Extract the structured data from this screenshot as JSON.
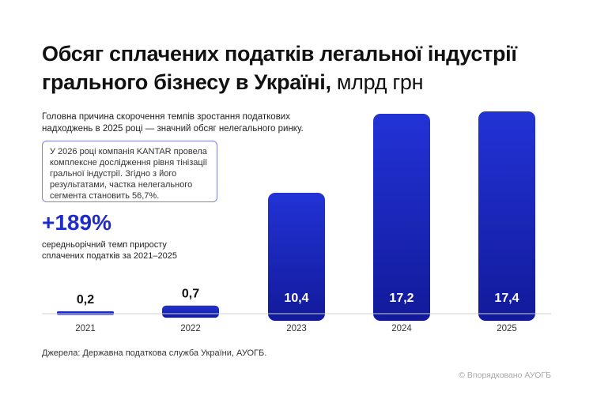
{
  "title": {
    "main": "Обсяг сплачених податків легальної індустрії грального бізнесу в Україні,",
    "unit": "млрд грн"
  },
  "lead_text": "Головна причина скорочення темпів зростання податкових надходжень в 2025 році — значний обсяг нелегального ринку.",
  "note_text": "У 2026 році компанія KANTAR провела комплексне дослідження рівня тінізації гральної індустрії. Згідно з його результатами, частка нелегального сегмента становить 56,7%.",
  "kpi": {
    "value": "+189%",
    "label": "середньорічний темп приросту сплачених податків за 2021–2025"
  },
  "source": "Джерела: Державна податкова служба України, АУОГБ.",
  "copyright": "© Впорядковано АУОГБ",
  "colors": {
    "bar_top": "#2233d6",
    "bar_bottom": "#121a9a",
    "accent": "#1f2cc7"
  },
  "chart_data": {
    "type": "bar",
    "categories": [
      "2021",
      "2022",
      "2023",
      "2024",
      "2025"
    ],
    "values": [
      0.2,
      0.7,
      10.4,
      17.2,
      17.4
    ],
    "value_labels": [
      "0,2",
      "0,7",
      "10,4",
      "17,2",
      "17,4"
    ],
    "ylim": [
      0,
      17.4
    ]
  }
}
